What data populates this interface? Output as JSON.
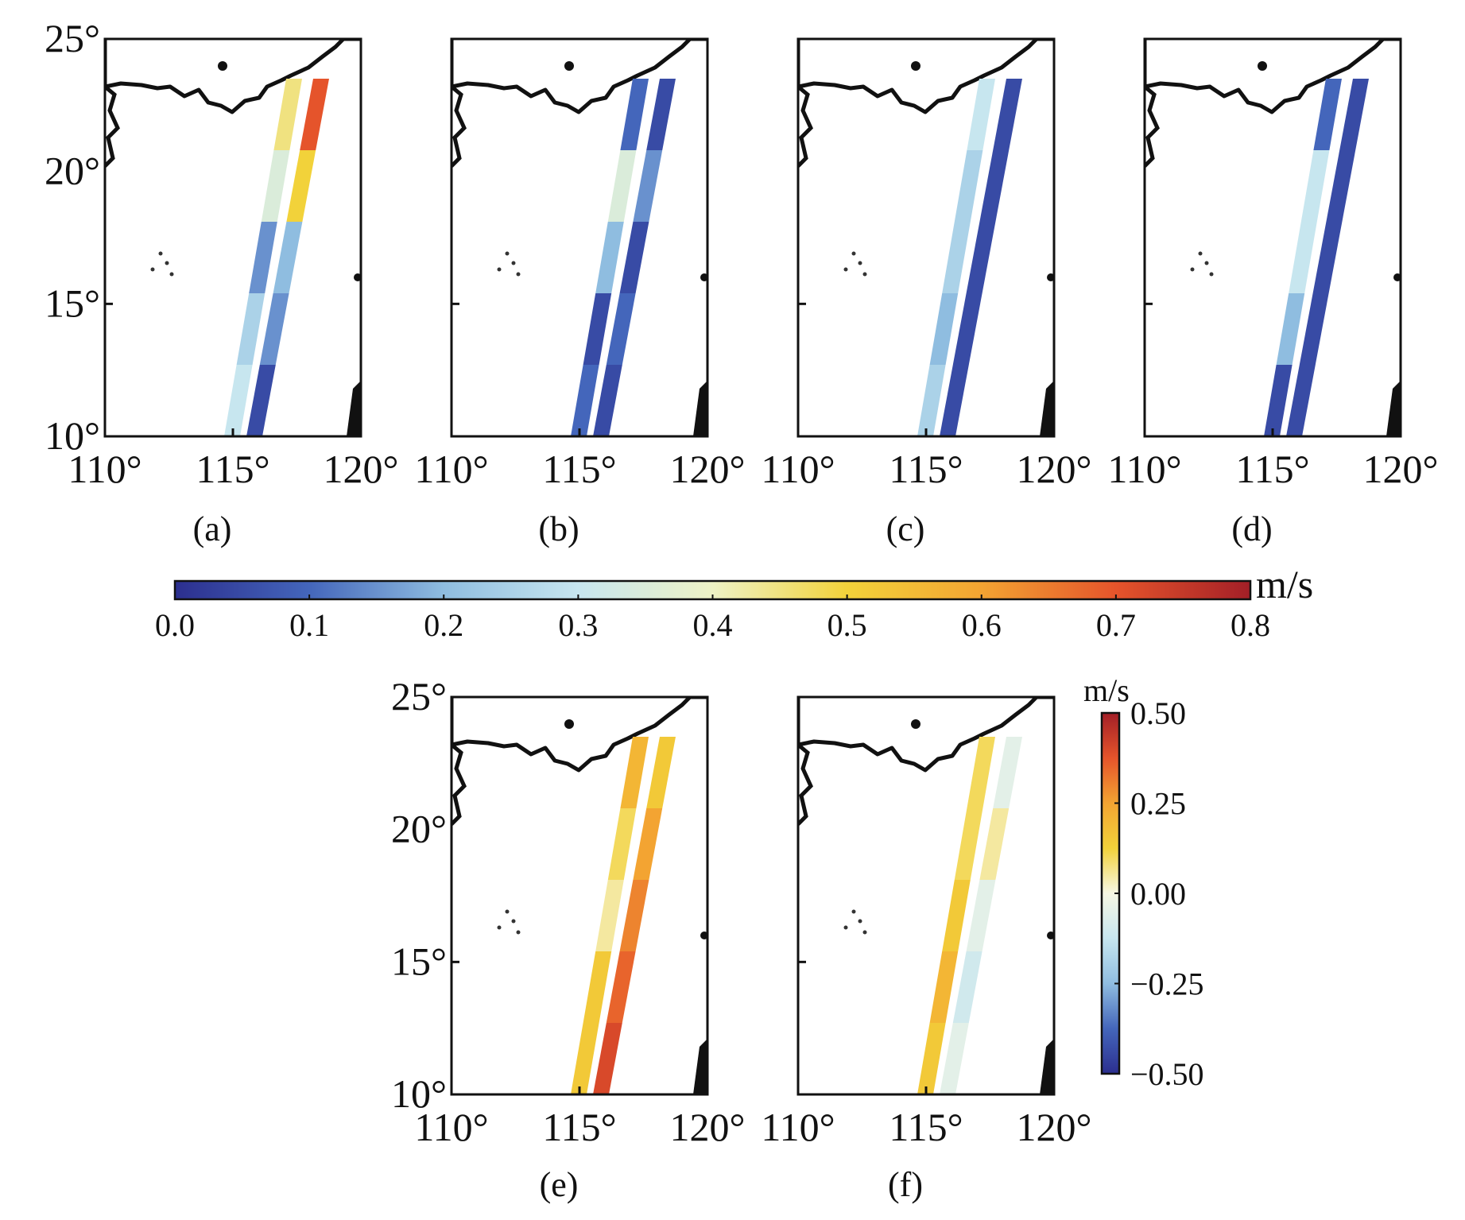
{
  "chart_data": [
    {
      "type": "heatmap",
      "panel": "(a)",
      "colorbar": "speed",
      "swath_values": {
        "east_track": [
          0.05,
          0.15,
          0.2,
          0.5,
          0.7
        ],
        "west_track": [
          0.3,
          0.25,
          0.15,
          0.35,
          0.45
        ]
      },
      "xlim": [
        110,
        120
      ],
      "ylim": [
        10,
        25
      ],
      "xticks": [
        "110°",
        "115°",
        "120°"
      ],
      "yticks": [
        "10°",
        "15°",
        "20°",
        "25°"
      ]
    },
    {
      "type": "heatmap",
      "panel": "(b)",
      "colorbar": "speed",
      "swath_values": {
        "east_track": [
          0.05,
          0.1,
          0.05,
          0.15,
          0.05
        ],
        "west_track": [
          0.1,
          0.05,
          0.2,
          0.35,
          0.1
        ]
      },
      "xlim": [
        110,
        120
      ],
      "ylim": [
        10,
        25
      ],
      "xticks": [
        "110°",
        "115°",
        "120°"
      ],
      "yticks": []
    },
    {
      "type": "heatmap",
      "panel": "(c)",
      "colorbar": "speed",
      "swath_values": {
        "east_track": [
          0.05,
          0.05,
          0.05,
          0.05,
          0.05
        ],
        "west_track": [
          0.25,
          0.2,
          0.25,
          0.25,
          0.3
        ]
      },
      "xlim": [
        110,
        120
      ],
      "ylim": [
        10,
        25
      ],
      "xticks": [
        "110°",
        "115°",
        "120°"
      ],
      "yticks": []
    },
    {
      "type": "heatmap",
      "panel": "(d)",
      "colorbar": "speed",
      "swath_values": {
        "east_track": [
          0.05,
          0.05,
          0.05,
          0.05,
          0.05
        ],
        "west_track": [
          0.05,
          0.2,
          0.3,
          0.3,
          0.1
        ]
      },
      "xlim": [
        110,
        120
      ],
      "ylim": [
        10,
        25
      ],
      "xticks": [
        "110°",
        "115°",
        "120°"
      ],
      "yticks": []
    },
    {
      "type": "heatmap",
      "panel": "(e)",
      "colorbar": "diff",
      "swath_values": {
        "east_track": [
          0.4,
          0.35,
          0.3,
          0.25,
          0.15
        ],
        "west_track": [
          0.15,
          0.15,
          0.05,
          0.1,
          0.2
        ]
      },
      "xlim": [
        110,
        120
      ],
      "ylim": [
        10,
        25
      ],
      "xticks": [
        "110°",
        "115°",
        "120°"
      ],
      "yticks": [
        "10°",
        "15°",
        "20°",
        "25°"
      ]
    },
    {
      "type": "heatmap",
      "panel": "(f)",
      "colorbar": "diff",
      "swath_values": {
        "east_track": [
          -0.05,
          -0.1,
          -0.05,
          0.05,
          -0.05
        ],
        "west_track": [
          0.15,
          0.2,
          0.15,
          0.1,
          0.1
        ]
      },
      "xlim": [
        110,
        120
      ],
      "ylim": [
        10,
        25
      ],
      "xticks": [
        "110°",
        "115°",
        "120°"
      ],
      "yticks": []
    }
  ],
  "colorbars": {
    "speed": {
      "unit": "m/s",
      "range": [
        0.0,
        0.8
      ],
      "ticks": [
        "0.0",
        "0.1",
        "0.2",
        "0.3",
        "0.4",
        "0.5",
        "0.6",
        "0.7",
        "0.8"
      ],
      "colors": [
        "#2c2f8f",
        "#4466bb",
        "#8fbde0",
        "#c7e6ef",
        "#eef2c5",
        "#f2d23a",
        "#f3a432",
        "#e5542b",
        "#a31f27"
      ]
    },
    "diff": {
      "unit": "m/s",
      "range": [
        -0.5,
        0.5
      ],
      "ticks": [
        "0.50",
        "0.25",
        "0.00",
        "−0.25",
        "−0.50"
      ],
      "colors": [
        "#2c2f8f",
        "#4466bb",
        "#8fbde0",
        "#c7e6ef",
        "#f6f7e4",
        "#f2d23a",
        "#f3a432",
        "#e5542b",
        "#a31f27"
      ]
    }
  }
}
